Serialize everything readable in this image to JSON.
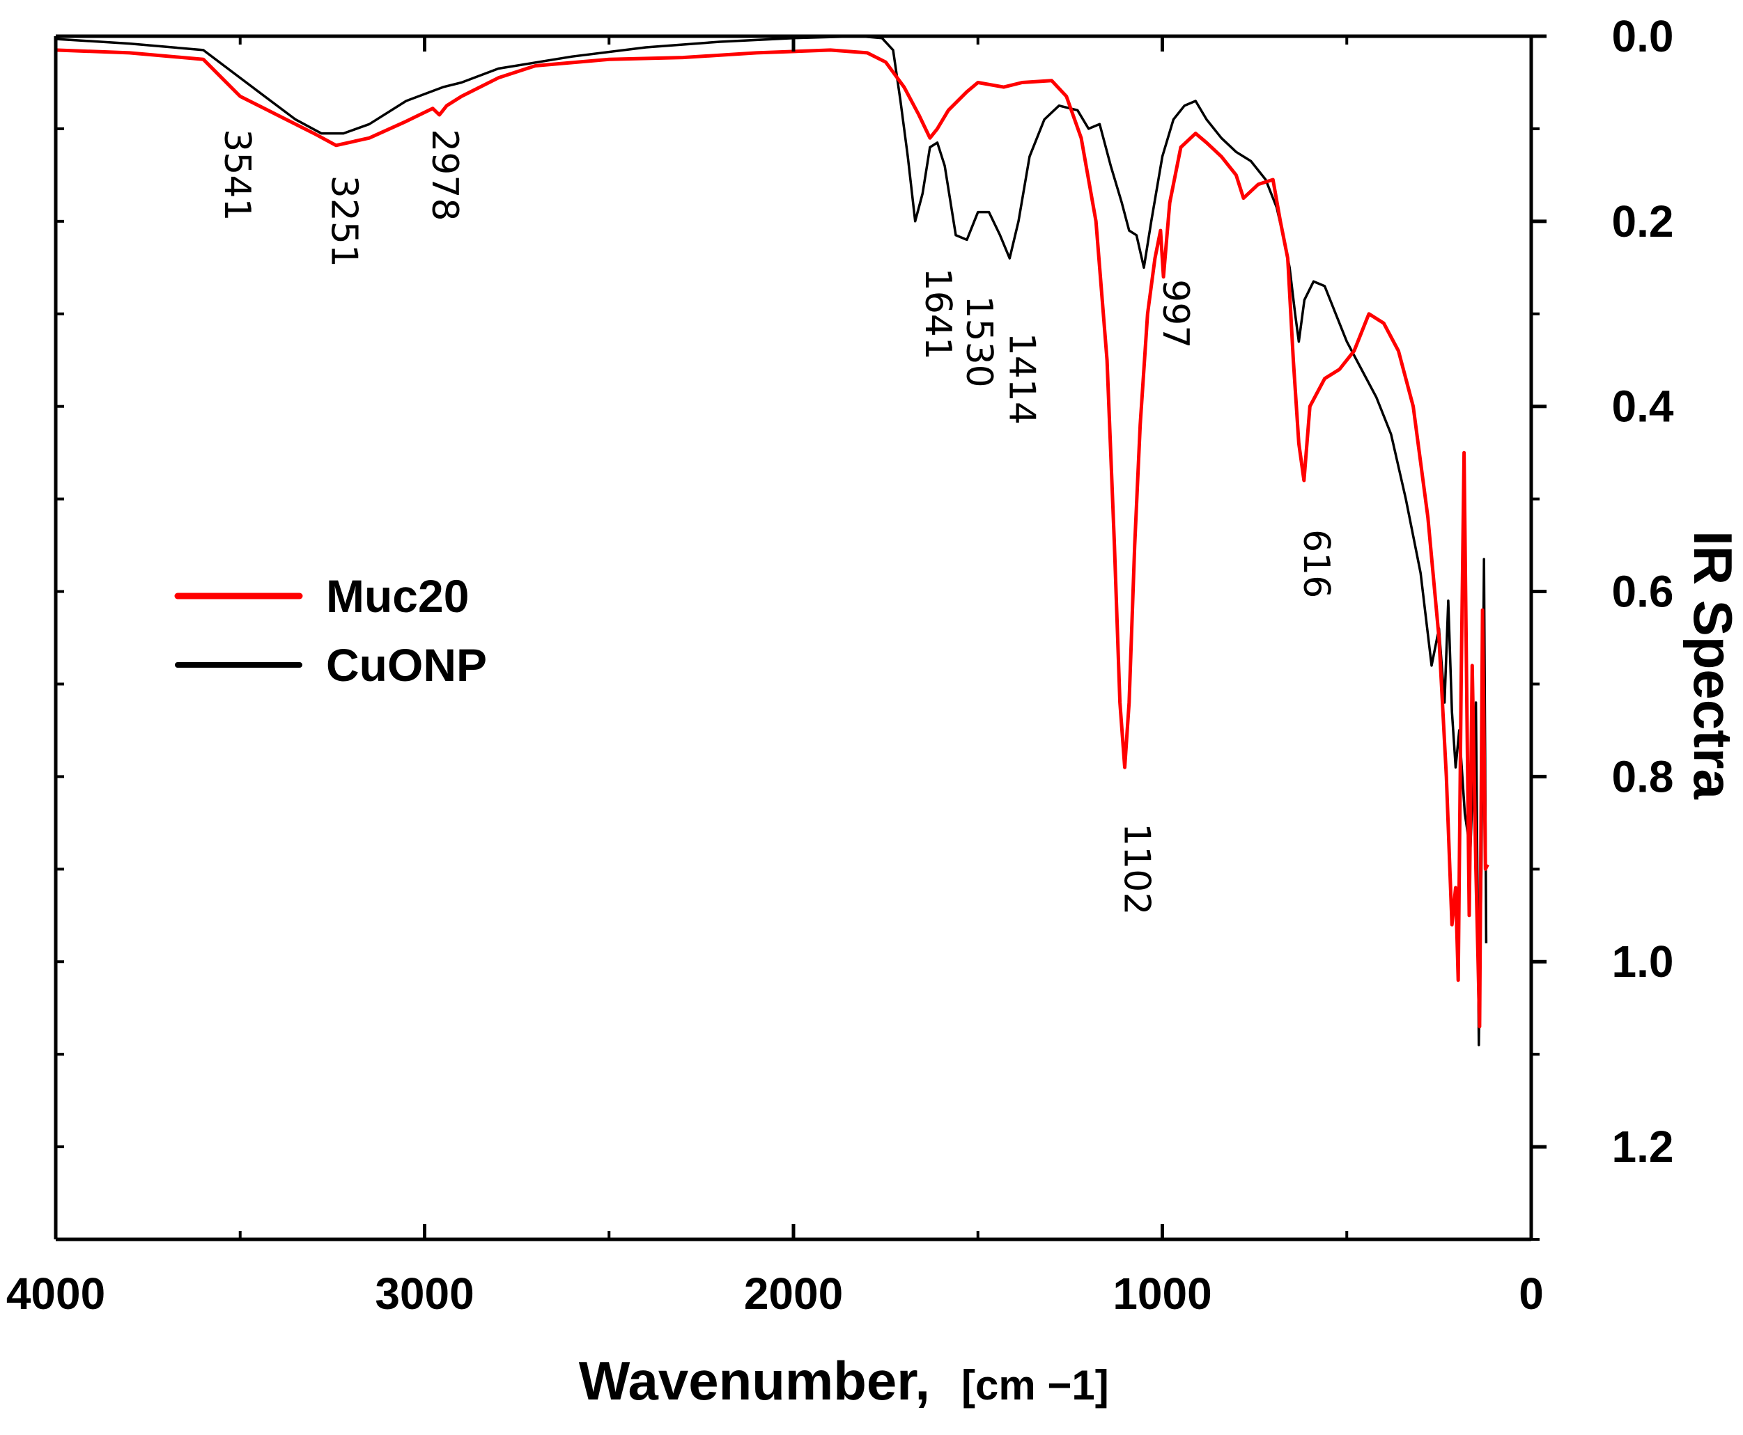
{
  "chart_data": {
    "type": "line",
    "title": "",
    "xlabel": "Wavenumber,",
    "xlabel_unit": "[cm −1]",
    "ylabel": "IR Spectra",
    "x_reversed": true,
    "y_inverted": true,
    "y_axis_side": "right",
    "xlim": [
      4000,
      0
    ],
    "ylim": [
      0.0,
      1.3
    ],
    "x_ticks": [
      4000,
      3000,
      2000,
      1000,
      0
    ],
    "x_tick_labels": [
      "4000",
      "3000",
      "2000",
      "1000",
      "0"
    ],
    "y_ticks": [
      0.0,
      0.2,
      0.4,
      0.6,
      0.8,
      1.0,
      1.2
    ],
    "y_tick_labels": [
      "0.0",
      "0.2",
      "0.4",
      "0.6",
      "0.8",
      "1.0",
      "1.2"
    ],
    "grid": false,
    "legend_position": "center-left",
    "series": [
      {
        "name": "Muc20",
        "color": "#ff0000",
        "points": [
          [
            4000,
            0.015
          ],
          [
            3800,
            0.018
          ],
          [
            3600,
            0.025
          ],
          [
            3550,
            0.045
          ],
          [
            3500,
            0.065
          ],
          [
            3400,
            0.085
          ],
          [
            3300,
            0.105
          ],
          [
            3240,
            0.118
          ],
          [
            3150,
            0.11
          ],
          [
            3050,
            0.092
          ],
          [
            2978,
            0.078
          ],
          [
            2960,
            0.085
          ],
          [
            2940,
            0.075
          ],
          [
            2900,
            0.065
          ],
          [
            2800,
            0.045
          ],
          [
            2700,
            0.032
          ],
          [
            2500,
            0.025
          ],
          [
            2300,
            0.023
          ],
          [
            2100,
            0.018
          ],
          [
            1900,
            0.015
          ],
          [
            1800,
            0.018
          ],
          [
            1750,
            0.028
          ],
          [
            1700,
            0.055
          ],
          [
            1660,
            0.085
          ],
          [
            1630,
            0.11
          ],
          [
            1610,
            0.1
          ],
          [
            1580,
            0.08
          ],
          [
            1530,
            0.06
          ],
          [
            1500,
            0.05
          ],
          [
            1430,
            0.055
          ],
          [
            1380,
            0.05
          ],
          [
            1300,
            0.048
          ],
          [
            1260,
            0.065
          ],
          [
            1220,
            0.11
          ],
          [
            1180,
            0.2
          ],
          [
            1150,
            0.35
          ],
          [
            1130,
            0.55
          ],
          [
            1115,
            0.72
          ],
          [
            1102,
            0.79
          ],
          [
            1090,
            0.72
          ],
          [
            1075,
            0.55
          ],
          [
            1060,
            0.42
          ],
          [
            1040,
            0.3
          ],
          [
            1020,
            0.24
          ],
          [
            1005,
            0.21
          ],
          [
            997,
            0.26
          ],
          [
            980,
            0.18
          ],
          [
            950,
            0.12
          ],
          [
            910,
            0.105
          ],
          [
            880,
            0.115
          ],
          [
            840,
            0.13
          ],
          [
            800,
            0.15
          ],
          [
            780,
            0.175
          ],
          [
            740,
            0.16
          ],
          [
            700,
            0.155
          ],
          [
            680,
            0.2
          ],
          [
            660,
            0.24
          ],
          [
            645,
            0.35
          ],
          [
            630,
            0.44
          ],
          [
            616,
            0.48
          ],
          [
            600,
            0.4
          ],
          [
            560,
            0.37
          ],
          [
            520,
            0.36
          ],
          [
            480,
            0.34
          ],
          [
            440,
            0.3
          ],
          [
            400,
            0.31
          ],
          [
            360,
            0.34
          ],
          [
            320,
            0.4
          ],
          [
            280,
            0.52
          ],
          [
            250,
            0.65
          ],
          [
            230,
            0.8
          ],
          [
            215,
            0.96
          ],
          [
            205,
            0.92
          ],
          [
            198,
            1.02
          ],
          [
            190,
            0.7
          ],
          [
            182,
            0.45
          ],
          [
            175,
            0.7
          ],
          [
            168,
            0.95
          ],
          [
            160,
            0.68
          ],
          [
            150,
            0.9
          ],
          [
            140,
            1.07
          ],
          [
            132,
            0.62
          ],
          [
            124,
            0.9
          ],
          [
            118,
            0.895
          ]
        ]
      },
      {
        "name": "CuONP",
        "color": "#000000",
        "points": [
          [
            4000,
            0.003
          ],
          [
            3800,
            0.008
          ],
          [
            3600,
            0.015
          ],
          [
            3550,
            0.03
          ],
          [
            3450,
            0.06
          ],
          [
            3350,
            0.09
          ],
          [
            3280,
            0.105
          ],
          [
            3220,
            0.105
          ],
          [
            3150,
            0.095
          ],
          [
            3050,
            0.07
          ],
          [
            2950,
            0.055
          ],
          [
            2900,
            0.05
          ],
          [
            2800,
            0.035
          ],
          [
            2600,
            0.022
          ],
          [
            2400,
            0.012
          ],
          [
            2200,
            0.006
          ],
          [
            2000,
            0.002
          ],
          [
            1820,
            0.0
          ],
          [
            1760,
            0.002
          ],
          [
            1730,
            0.015
          ],
          [
            1710,
            0.07
          ],
          [
            1690,
            0.13
          ],
          [
            1670,
            0.2
          ],
          [
            1650,
            0.17
          ],
          [
            1630,
            0.12
          ],
          [
            1610,
            0.115
          ],
          [
            1590,
            0.14
          ],
          [
            1560,
            0.215
          ],
          [
            1530,
            0.22
          ],
          [
            1500,
            0.19
          ],
          [
            1470,
            0.19
          ],
          [
            1440,
            0.215
          ],
          [
            1414,
            0.24
          ],
          [
            1390,
            0.2
          ],
          [
            1360,
            0.13
          ],
          [
            1320,
            0.09
          ],
          [
            1280,
            0.075
          ],
          [
            1230,
            0.08
          ],
          [
            1200,
            0.1
          ],
          [
            1170,
            0.095
          ],
          [
            1140,
            0.14
          ],
          [
            1110,
            0.18
          ],
          [
            1090,
            0.21
          ],
          [
            1070,
            0.215
          ],
          [
            1050,
            0.25
          ],
          [
            1030,
            0.2
          ],
          [
            1000,
            0.13
          ],
          [
            970,
            0.09
          ],
          [
            940,
            0.075
          ],
          [
            910,
            0.07
          ],
          [
            880,
            0.09
          ],
          [
            840,
            0.11
          ],
          [
            800,
            0.125
          ],
          [
            760,
            0.135
          ],
          [
            720,
            0.155
          ],
          [
            690,
            0.185
          ],
          [
            670,
            0.22
          ],
          [
            655,
            0.25
          ],
          [
            640,
            0.3
          ],
          [
            630,
            0.33
          ],
          [
            615,
            0.285
          ],
          [
            590,
            0.265
          ],
          [
            560,
            0.27
          ],
          [
            530,
            0.3
          ],
          [
            500,
            0.33
          ],
          [
            460,
            0.36
          ],
          [
            420,
            0.39
          ],
          [
            380,
            0.43
          ],
          [
            340,
            0.5
          ],
          [
            300,
            0.58
          ],
          [
            270,
            0.68
          ],
          [
            250,
            0.64
          ],
          [
            235,
            0.72
          ],
          [
            225,
            0.61
          ],
          [
            215,
            0.73
          ],
          [
            205,
            0.79
          ],
          [
            195,
            0.75
          ],
          [
            180,
            0.84
          ],
          [
            165,
            0.88
          ],
          [
            150,
            0.72
          ],
          [
            142,
            1.09
          ],
          [
            135,
            0.9
          ],
          [
            128,
            0.565
          ],
          [
            122,
            0.98
          ]
        ]
      }
    ],
    "annotations": [
      {
        "text": "3541",
        "x": 3541,
        "y": 0.15
      },
      {
        "text": "3251",
        "x": 3251,
        "y": 0.2
      },
      {
        "text": "2978",
        "x": 2978,
        "y": 0.15
      },
      {
        "text": "1641",
        "x": 1641,
        "y": 0.3
      },
      {
        "text": "1530",
        "x": 1530,
        "y": 0.33
      },
      {
        "text": "1414",
        "x": 1414,
        "y": 0.37
      },
      {
        "text": "1102",
        "x": 1102,
        "y": 0.9
      },
      {
        "text": "997",
        "x": 997,
        "y": 0.3
      },
      {
        "text": "616",
        "x": 616,
        "y": 0.57
      }
    ]
  }
}
